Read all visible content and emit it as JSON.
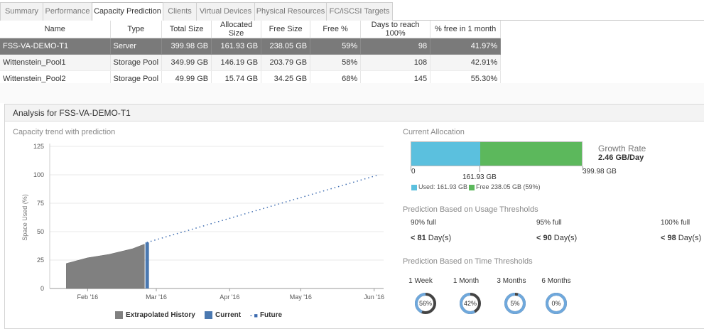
{
  "tabs": [
    {
      "label": "Summary",
      "active": false
    },
    {
      "label": "Performance",
      "active": false
    },
    {
      "label": "Capacity Prediction",
      "active": true
    },
    {
      "label": "Clients",
      "active": false
    },
    {
      "label": "Virtual Devices",
      "active": false
    },
    {
      "label": "Physical Resources",
      "active": false
    },
    {
      "label": "FC/iSCSI Targets",
      "active": false
    }
  ],
  "table": {
    "columns": [
      "Name",
      "Type",
      "Total Size",
      "Allocated Size",
      "Free Size",
      "Free %",
      "Days to reach 100%",
      "% free in 1 month"
    ],
    "rows": [
      {
        "name": "FSS-VA-DEMO-T1",
        "type": "Server",
        "total": "399.98 GB",
        "allocated": "161.93 GB",
        "free": "238.05 GB",
        "free_pct": "59%",
        "days": "98",
        "free_month": "41.97%",
        "selected": true
      },
      {
        "name": "Wittenstein_Pool1",
        "type": "Storage Pool",
        "total": "349.99 GB",
        "allocated": "146.19 GB",
        "free": "203.79 GB",
        "free_pct": "58%",
        "days": "108",
        "free_month": "42.91%",
        "selected": false
      },
      {
        "name": "Wittenstein_Pool2",
        "type": "Storage Pool",
        "total": "49.99 GB",
        "allocated": "15.74 GB",
        "free": "34.25 GB",
        "free_pct": "68%",
        "days": "145",
        "free_month": "55.30%",
        "selected": false
      }
    ]
  },
  "analysis": {
    "header": "Analysis for FSS-VA-DEMO-T1",
    "trend_title": "Capacity trend with prediction"
  },
  "chart_data": {
    "type": "area",
    "title": "Capacity trend with prediction",
    "ylabel": "Space Used (%)",
    "xlabel": "",
    "ylim": [
      0,
      125
    ],
    "yticks": [
      0,
      25,
      50,
      75,
      100,
      125
    ],
    "xticks": [
      "Feb '16",
      "Mar '16",
      "Apr '16",
      "May '16",
      "Jun '16"
    ],
    "grid": "horizontal",
    "legend_position": "bottom",
    "series": [
      {
        "name": "Extrapolated History",
        "style": "area",
        "color": "#808080",
        "x": [
          "2016-01-23",
          "2016-02-01",
          "2016-02-10",
          "2016-02-20",
          "2016-02-25"
        ],
        "values": [
          22,
          27,
          30,
          35,
          39
        ]
      },
      {
        "name": "Current",
        "style": "bar",
        "color": "#4a78b0",
        "x": [
          "2016-02-26"
        ],
        "values": [
          40.5
        ]
      },
      {
        "name": "Future",
        "style": "dotted",
        "color": "#3c6bb0",
        "x": [
          "2016-02-26",
          "2016-06-03"
        ],
        "values": [
          40.5,
          100
        ]
      }
    ]
  },
  "allocation": {
    "title": "Current Allocation",
    "used_value": 161.93,
    "total_value": 399.98,
    "axis_min": "0",
    "axis_mid": "161.93 GB",
    "axis_max": "399.98 GB",
    "legend_used": "Used: 161.93 GB",
    "legend_free": "Free 238.05 GB (59%)",
    "used_color": "#5bc0de",
    "free_color": "#5cb85c",
    "growth_label": "Growth Rate",
    "growth_value": "2.46 GB/Day"
  },
  "usage_thresholds": {
    "title": "Prediction Based on Usage Thresholds",
    "items": [
      {
        "label": "90% full",
        "value": "< 81",
        "unit": "Day(s)"
      },
      {
        "label": "95% full",
        "value": "< 90",
        "unit": "Day(s)"
      },
      {
        "label": "100% full",
        "value": "< 98",
        "unit": "Day(s)"
      }
    ]
  },
  "time_thresholds": {
    "title": "Prediction Based on Time Thresholds",
    "items": [
      {
        "label": "1 Week",
        "pct": "56%",
        "value": 0.56
      },
      {
        "label": "1 Month",
        "pct": "42%",
        "value": 0.42
      },
      {
        "label": "3 Months",
        "pct": "5%",
        "value": 0.05
      },
      {
        "label": "6 Months",
        "pct": "0%",
        "value": 0.0
      }
    ]
  }
}
